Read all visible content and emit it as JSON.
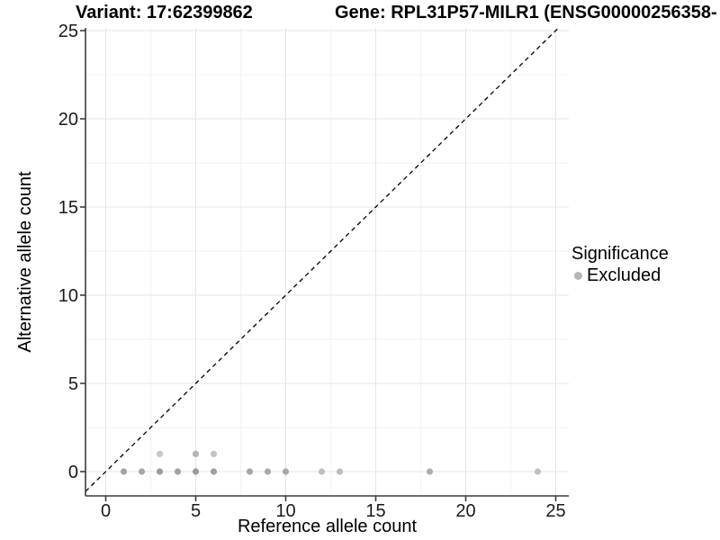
{
  "chart_data": {
    "type": "scatter",
    "titles": {
      "variant": "Variant: 17:62399862",
      "gene": "Gene: RPL31P57-MILR1 (ENSG00000256358-"
    },
    "xlabel": "Reference allele count",
    "ylabel": "Alternative allele count",
    "x_axis": {
      "range": [
        0,
        25
      ],
      "ticks": [
        0,
        5,
        10,
        15,
        20,
        25
      ],
      "minor_ticks": [
        2.5,
        7.5,
        12.5,
        17.5,
        22.5
      ]
    },
    "y_axis": {
      "range": [
        0,
        25
      ],
      "ticks": [
        0,
        5,
        10,
        15,
        20,
        25
      ],
      "minor_ticks": [
        2.5,
        7.5,
        12.5,
        17.5,
        22.5
      ]
    },
    "identity_line": {
      "equation": "y = x",
      "style": "dashed",
      "color": "#000000"
    },
    "grid": {
      "major_color": "#e4e4e4",
      "minor_color": "#f2f2f2"
    },
    "axis_color": "#3c3c3c",
    "legend": {
      "title": "Significance",
      "position": "right",
      "items": [
        {
          "label": "Excluded",
          "color": "#b4b4b4"
        }
      ]
    },
    "series": [
      {
        "name": "Excluded",
        "points": [
          {
            "x": 1,
            "y": 0,
            "color": "#a3a3a3"
          },
          {
            "x": 2,
            "y": 0,
            "color": "#a7a7a7"
          },
          {
            "x": 3,
            "y": 0,
            "color": "#9c9c9c"
          },
          {
            "x": 4,
            "y": 0,
            "color": "#a3a3a3"
          },
          {
            "x": 5,
            "y": 0,
            "color": "#9a9a9a"
          },
          {
            "x": 6,
            "y": 0,
            "color": "#a0a0a0"
          },
          {
            "x": 8,
            "y": 0,
            "color": "#a5a5a5"
          },
          {
            "x": 9,
            "y": 0,
            "color": "#a9a9a9"
          },
          {
            "x": 10,
            "y": 0,
            "color": "#a7a7a7"
          },
          {
            "x": 12,
            "y": 0,
            "color": "#bfbfbf"
          },
          {
            "x": 13,
            "y": 0,
            "color": "#bdbdbd"
          },
          {
            "x": 18,
            "y": 0,
            "color": "#aeaeae"
          },
          {
            "x": 24,
            "y": 0,
            "color": "#c0c0c0"
          },
          {
            "x": 3,
            "y": 1,
            "color": "#c8c8c8"
          },
          {
            "x": 5,
            "y": 1,
            "color": "#b5b5b5"
          },
          {
            "x": 6,
            "y": 1,
            "color": "#c4c4c4"
          }
        ]
      }
    ]
  }
}
